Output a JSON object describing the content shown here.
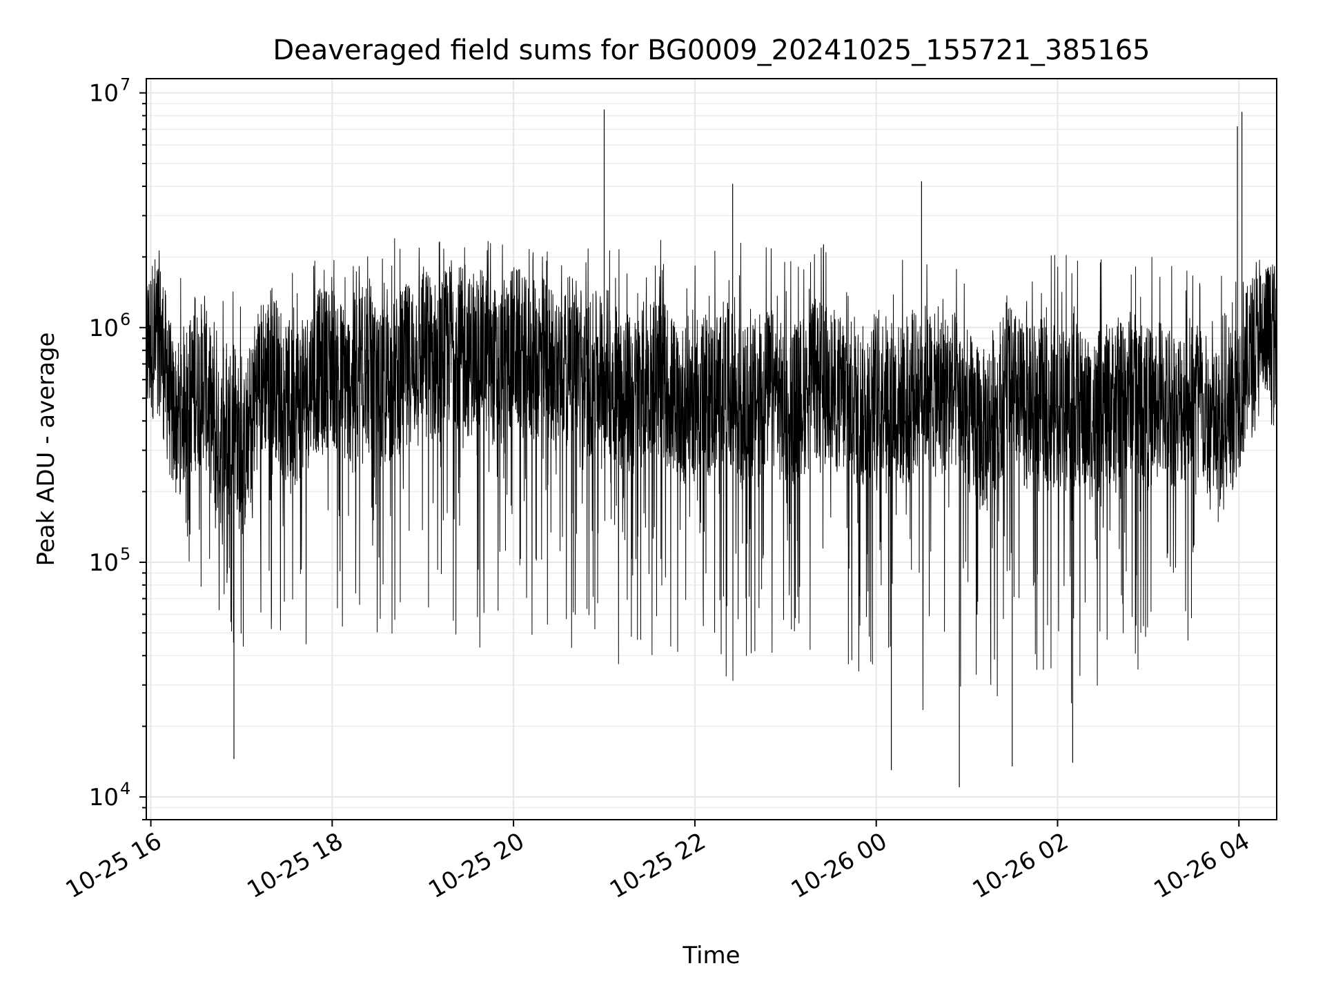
{
  "chart_data": {
    "type": "line",
    "title": "Deaveraged field sums for BG0009_20241025_155721_385165",
    "xlabel": "Time",
    "ylabel": "Peak ADU - average",
    "y_scale": "log",
    "ylim": [
      8000,
      11500000
    ],
    "xlim": [
      "2024-10-25 15:57",
      "2024-10-26 04:25"
    ],
    "grid": "both",
    "legend": "none",
    "line_color": "#000000",
    "x_ticks": [
      {
        "value": "2024-10-25 16:00",
        "label": "10-25 16"
      },
      {
        "value": "2024-10-25 18:00",
        "label": "10-25 18"
      },
      {
        "value": "2024-10-25 20:00",
        "label": "10-25 20"
      },
      {
        "value": "2024-10-25 22:00",
        "label": "10-25 22"
      },
      {
        "value": "2024-10-26 00:00",
        "label": "10-26 00"
      },
      {
        "value": "2024-10-26 02:00",
        "label": "10-26 02"
      },
      {
        "value": "2024-10-26 04:00",
        "label": "10-26 04"
      }
    ],
    "y_ticks": [
      {
        "value": 10000,
        "base": "10",
        "exp": "4"
      },
      {
        "value": 100000,
        "base": "10",
        "exp": "5"
      },
      {
        "value": 1000000,
        "base": "10",
        "exp": "6"
      },
      {
        "value": 10000000,
        "base": "10",
        "exp": "7"
      }
    ],
    "series": [
      {
        "x": [
          "2024-10-25 15:57",
          "2024-10-25 16:05",
          "2024-10-25 16:15",
          "2024-10-25 16:25",
          "2024-10-25 16:35",
          "2024-10-25 16:45",
          "2024-10-25 16:55",
          "2024-10-25 17:00",
          "2024-10-25 17:10",
          "2024-10-25 17:20",
          "2024-10-25 17:30",
          "2024-10-25 17:40",
          "2024-10-25 17:50",
          "2024-10-25 18:00",
          "2024-10-25 18:10",
          "2024-10-25 18:20",
          "2024-10-25 18:30",
          "2024-10-25 18:40",
          "2024-10-25 18:50",
          "2024-10-25 19:00",
          "2024-10-25 19:10",
          "2024-10-25 19:20",
          "2024-10-25 19:30",
          "2024-10-25 19:40",
          "2024-10-25 19:50",
          "2024-10-25 20:00",
          "2024-10-25 20:10",
          "2024-10-25 20:20",
          "2024-10-25 20:30",
          "2024-10-25 20:40",
          "2024-10-25 20:50",
          "2024-10-25 21:00",
          "2024-10-25 21:10",
          "2024-10-25 21:20",
          "2024-10-25 21:30",
          "2024-10-25 21:40",
          "2024-10-25 21:50",
          "2024-10-25 22:00",
          "2024-10-25 22:10",
          "2024-10-25 22:20",
          "2024-10-25 22:30",
          "2024-10-25 22:40",
          "2024-10-25 22:50",
          "2024-10-25 23:00",
          "2024-10-25 23:10",
          "2024-10-25 23:20",
          "2024-10-25 23:30",
          "2024-10-25 23:40",
          "2024-10-25 23:50",
          "2024-10-26 00:00",
          "2024-10-26 00:10",
          "2024-10-26 00:20",
          "2024-10-26 00:30",
          "2024-10-26 00:40",
          "2024-10-26 00:50",
          "2024-10-26 01:00",
          "2024-10-26 01:10",
          "2024-10-26 01:20",
          "2024-10-26 01:30",
          "2024-10-26 01:40",
          "2024-10-26 01:50",
          "2024-10-26 02:00",
          "2024-10-26 02:10",
          "2024-10-26 02:20",
          "2024-10-26 02:30",
          "2024-10-26 02:40",
          "2024-10-26 02:50",
          "2024-10-26 03:00",
          "2024-10-26 03:10",
          "2024-10-26 03:20",
          "2024-10-26 03:30",
          "2024-10-26 03:40",
          "2024-10-26 03:50",
          "2024-10-26 04:00",
          "2024-10-26 04:10",
          "2024-10-26 04:20",
          "2024-10-26 04:25"
        ],
        "y": [
          800000,
          1000000,
          400000,
          500000,
          600000,
          300000,
          450000,
          250000,
          550000,
          700000,
          450000,
          500000,
          650000,
          700000,
          550000,
          750000,
          500000,
          600000,
          700000,
          850000,
          700000,
          900000,
          750000,
          800000,
          650000,
          850000,
          700000,
          750000,
          650000,
          800000,
          600000,
          700000,
          550000,
          500000,
          650000,
          600000,
          450000,
          550000,
          500000,
          600000,
          450000,
          500000,
          550000,
          450000,
          500000,
          600000,
          550000,
          500000,
          450000,
          550000,
          500000,
          450000,
          600000,
          500000,
          550000,
          450000,
          350000,
          500000,
          550000,
          450000,
          500000,
          450000,
          500000,
          400000,
          450000,
          500000,
          550000,
          450000,
          500000,
          450000,
          550000,
          400000,
          350000,
          550000,
          800000,
          900000,
          800000
        ]
      }
    ],
    "noise_envelope": {
      "x": [
        "2024-10-25 15:57",
        "2024-10-25 16:15",
        "2024-10-25 16:30",
        "2024-10-25 17:00",
        "2024-10-25 17:30",
        "2024-10-25 18:00",
        "2024-10-25 18:30",
        "2024-10-25 19:00",
        "2024-10-25 19:30",
        "2024-10-25 20:00",
        "2024-10-25 20:30",
        "2024-10-25 21:00",
        "2024-10-25 21:30",
        "2024-10-25 22:00",
        "2024-10-25 22:30",
        "2024-10-25 23:00",
        "2024-10-25 23:30",
        "2024-10-26 00:00",
        "2024-10-26 00:30",
        "2024-10-26 01:00",
        "2024-10-26 01:30",
        "2024-10-26 02:00",
        "2024-10-26 02:30",
        "2024-10-26 03:00",
        "2024-10-26 03:30",
        "2024-10-26 03:50",
        "2024-10-26 04:00",
        "2024-10-26 04:25"
      ],
      "upper": [
        1500000,
        1700000,
        1600000,
        2000000,
        2200000,
        2300000,
        2400000,
        2600000,
        2500000,
        2400000,
        2300000,
        2500000,
        2400000,
        2300000,
        2500000,
        2400000,
        2300000,
        2100000,
        2400000,
        2300000,
        2200000,
        2300000,
        2200000,
        2200000,
        2000000,
        1700000,
        2500000,
        2200000
      ],
      "lower": [
        400000,
        250000,
        60000,
        40000,
        45000,
        40000,
        50000,
        45000,
        40000,
        45000,
        40000,
        35000,
        40000,
        38000,
        30000,
        32000,
        28000,
        25000,
        22000,
        28000,
        25000,
        22000,
        25000,
        35000,
        45000,
        120000,
        500000,
        600000
      ]
    },
    "spikes": [
      {
        "x": "2024-10-26 03:59",
        "y": 7200000
      },
      {
        "x": "2024-10-26 04:02",
        "y": 8300000
      },
      {
        "x": "2024-10-25 21:00",
        "y": 8500000
      },
      {
        "x": "2024-10-26 00:30",
        "y": 4200000
      },
      {
        "x": "2024-10-25 22:25",
        "y": 4100000
      },
      {
        "x": "2024-10-26 00:55",
        "y": 11000
      },
      {
        "x": "2024-10-25 16:55",
        "y": 14500
      },
      {
        "x": "2024-10-26 02:10",
        "y": 14000
      },
      {
        "x": "2024-10-26 01:30",
        "y": 13500
      },
      {
        "x": "2024-10-26 00:10",
        "y": 13000
      }
    ]
  }
}
